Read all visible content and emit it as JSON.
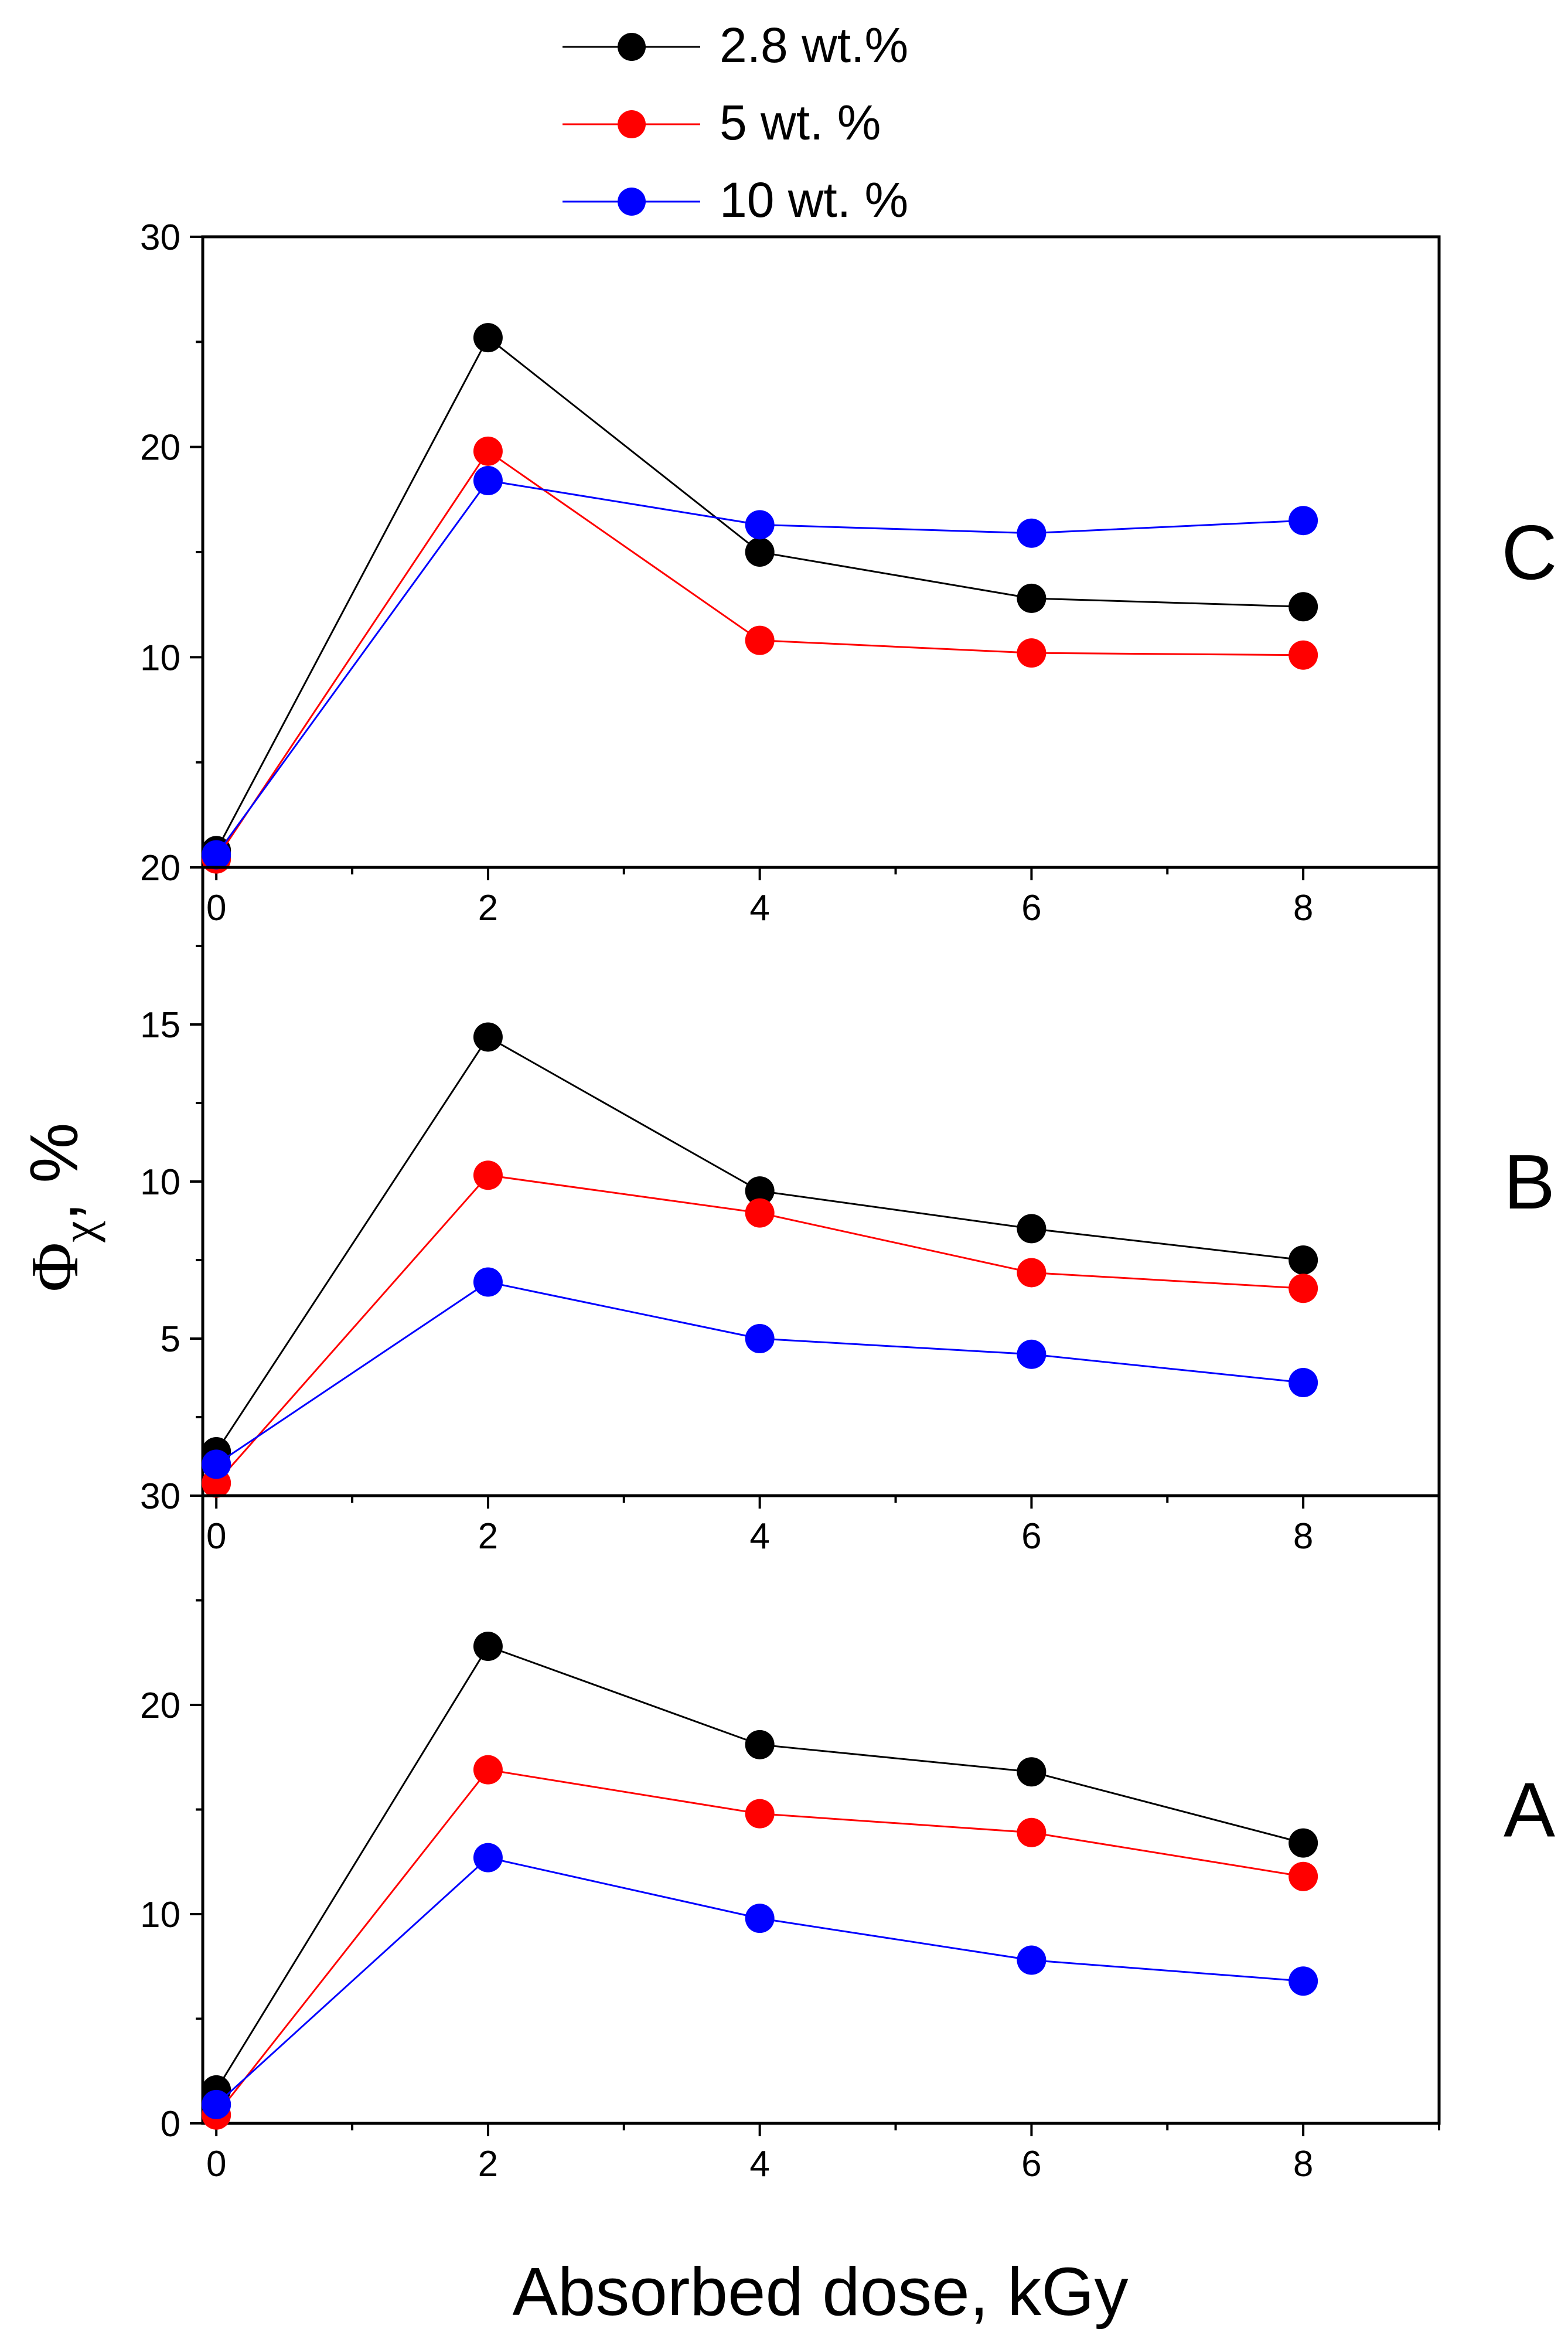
{
  "figure": {
    "xlabel": "Absorbed dose, kGy",
    "ylabel_symbol": "Φ",
    "ylabel_subscript": "χ",
    "ylabel_suffix": ", %"
  },
  "legend": {
    "position": "top-center",
    "entries": [
      {
        "label": "2.8 wt.%",
        "color": "#000000"
      },
      {
        "label": "5 wt. %",
        "color": "#ff0000"
      },
      {
        "label": "10 wt. %",
        "color": "#0000ff"
      }
    ]
  },
  "chart_data": [
    {
      "type": "line",
      "panel_label": "C",
      "x": [
        0,
        2,
        4,
        6,
        8
      ],
      "xlim": [
        -0.1,
        9
      ],
      "x_ticks": [
        "0",
        "2",
        "4",
        "6",
        "8"
      ],
      "ylim": [
        0,
        30
      ],
      "y_ticks": [
        "10",
        "20",
        "30"
      ],
      "series": [
        {
          "name": "2.8 wt.%",
          "color": "#000000",
          "values": [
            0.8,
            25.2,
            15.0,
            12.8,
            12.4
          ]
        },
        {
          "name": "5 wt. %",
          "color": "#ff0000",
          "values": [
            0.4,
            19.8,
            10.8,
            10.2,
            10.1
          ]
        },
        {
          "name": "10 wt. %",
          "color": "#0000ff",
          "values": [
            0.6,
            18.4,
            16.3,
            15.9,
            16.5
          ]
        }
      ]
    },
    {
      "type": "line",
      "panel_label": "B",
      "x": [
        0,
        2,
        4,
        6,
        8
      ],
      "xlim": [
        -0.1,
        9
      ],
      "x_ticks": [
        "0",
        "2",
        "4",
        "6",
        "8"
      ],
      "ylim": [
        0,
        20
      ],
      "y_ticks": [
        "5",
        "10",
        "15",
        "20"
      ],
      "series": [
        {
          "name": "2.8 wt.%",
          "color": "#000000",
          "values": [
            1.4,
            14.6,
            9.7,
            8.5,
            7.5
          ]
        },
        {
          "name": "5 wt. %",
          "color": "#ff0000",
          "values": [
            0.4,
            10.2,
            9.0,
            7.1,
            6.6
          ]
        },
        {
          "name": "10 wt. %",
          "color": "#0000ff",
          "values": [
            1.0,
            6.8,
            5.0,
            4.5,
            3.6
          ]
        }
      ]
    },
    {
      "type": "line",
      "panel_label": "A",
      "x": [
        0,
        2,
        4,
        6,
        8
      ],
      "xlim": [
        -0.1,
        9
      ],
      "x_ticks": [
        "0",
        "2",
        "4",
        "6",
        "8"
      ],
      "ylim": [
        0,
        30
      ],
      "y_ticks": [
        "0",
        "10",
        "20",
        "30"
      ],
      "series": [
        {
          "name": "2.8 wt.%",
          "color": "#000000",
          "values": [
            1.6,
            22.8,
            18.1,
            16.8,
            13.4
          ]
        },
        {
          "name": "5 wt. %",
          "color": "#ff0000",
          "values": [
            0.4,
            16.9,
            14.8,
            13.9,
            11.8
          ]
        },
        {
          "name": "10 wt. %",
          "color": "#0000ff",
          "values": [
            0.9,
            12.7,
            9.8,
            7.8,
            6.8
          ]
        }
      ]
    }
  ]
}
